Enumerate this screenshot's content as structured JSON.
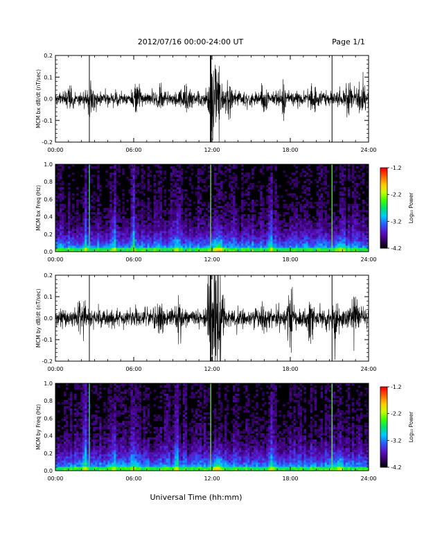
{
  "header": {
    "date_range": "2012/07/16  00:00-24:00 UT",
    "page": "Page 1/1"
  },
  "xlabel": "Universal Time (hh:mm)",
  "x_ticks": [
    "00:00",
    "06:00",
    "12:00",
    "18:00",
    "24:00"
  ],
  "colorbar": {
    "label": "Log₁₀ Power",
    "ticks": [
      "-1.2",
      "-2.2",
      "-3.2",
      "-4.2"
    ],
    "range": [
      -4.2,
      -1.2
    ],
    "colors": [
      "#000000",
      "#3a0070",
      "#5a14c8",
      "#2a5cff",
      "#00c8ff",
      "#00e070",
      "#40ff00",
      "#c8ff00",
      "#ffc800",
      "#ff6400",
      "#ff0000"
    ]
  },
  "chart_data": [
    {
      "type": "line",
      "ylabel": "MCM bx dB/dt (nT/sec)",
      "xlim": [
        0,
        24
      ],
      "ylim": [
        -0.2,
        0.2
      ],
      "y_ticks": [
        "0.2",
        "0.1",
        "0.0",
        "-0.1",
        "-0.2"
      ],
      "baseline_amplitude": 0.02,
      "spikes_hours": [
        2.6,
        11.9,
        21.2
      ],
      "disturbances": [
        {
          "t": 1.2,
          "amp": 0.04
        },
        {
          "t": 2.7,
          "amp": 0.05
        },
        {
          "t": 6.2,
          "amp": 0.03
        },
        {
          "t": 8.0,
          "amp": 0.03
        },
        {
          "t": 10.0,
          "amp": 0.04
        },
        {
          "t": 11.95,
          "amp": 0.11
        },
        {
          "t": 12.2,
          "amp": 0.12
        },
        {
          "t": 12.5,
          "amp": 0.09
        },
        {
          "t": 13.3,
          "amp": 0.05
        },
        {
          "t": 16.0,
          "amp": 0.04
        },
        {
          "t": 17.5,
          "amp": 0.04
        },
        {
          "t": 19.8,
          "amp": 0.04
        },
        {
          "t": 22.5,
          "amp": 0.05
        },
        {
          "t": 23.5,
          "amp": 0.04
        }
      ]
    },
    {
      "type": "heatmap",
      "ylabel": "MCM bx Freq (Hz)",
      "xlim": [
        0,
        24
      ],
      "ylim": [
        0,
        1.0
      ],
      "y_ticks": [
        "1.0",
        "0.8",
        "0.6",
        "0.4",
        "0.2",
        "0.0"
      ],
      "bright_columns_hours": [
        2.6,
        11.9,
        21.2
      ],
      "enhanced_columns_hours": [
        2.3,
        4.5,
        6.0,
        9.3,
        16.5
      ],
      "low_freq_enhancement_hours": [
        12.3,
        12.6,
        21.8
      ]
    },
    {
      "type": "line",
      "ylabel": "MCM by dB/dt (nT/sec)",
      "xlim": [
        0,
        24
      ],
      "ylim": [
        -0.2,
        0.2
      ],
      "y_ticks": [
        "0.2",
        "0.1",
        "0.0",
        "-0.1",
        "-0.2"
      ],
      "baseline_amplitude": 0.025,
      "spikes_hours": [
        2.6,
        11.9,
        21.2
      ],
      "disturbances": [
        {
          "t": 2.0,
          "amp": 0.05
        },
        {
          "t": 8.0,
          "amp": 0.04
        },
        {
          "t": 9.5,
          "amp": 0.05
        },
        {
          "t": 11.9,
          "amp": 0.15
        },
        {
          "t": 12.3,
          "amp": 0.18
        },
        {
          "t": 12.6,
          "amp": 0.15
        },
        {
          "t": 16.0,
          "amp": 0.06
        },
        {
          "t": 18.0,
          "amp": 0.07
        },
        {
          "t": 19.5,
          "amp": 0.07
        },
        {
          "t": 21.5,
          "amp": 0.06
        },
        {
          "t": 23.0,
          "amp": 0.07
        }
      ]
    },
    {
      "type": "heatmap",
      "ylabel": "MCM by Freq (Hz)",
      "xlim": [
        0,
        24
      ],
      "ylim": [
        0,
        1.0
      ],
      "y_ticks": [
        "1.0",
        "0.8",
        "0.6",
        "0.4",
        "0.2",
        "0.0"
      ],
      "bright_columns_hours": [
        2.6,
        11.9,
        21.2
      ],
      "enhanced_columns_hours": [
        2.3,
        4.5,
        6.0,
        9.3,
        16.5
      ],
      "low_freq_enhancement_hours": [
        12.3,
        12.6,
        21.8
      ]
    }
  ]
}
